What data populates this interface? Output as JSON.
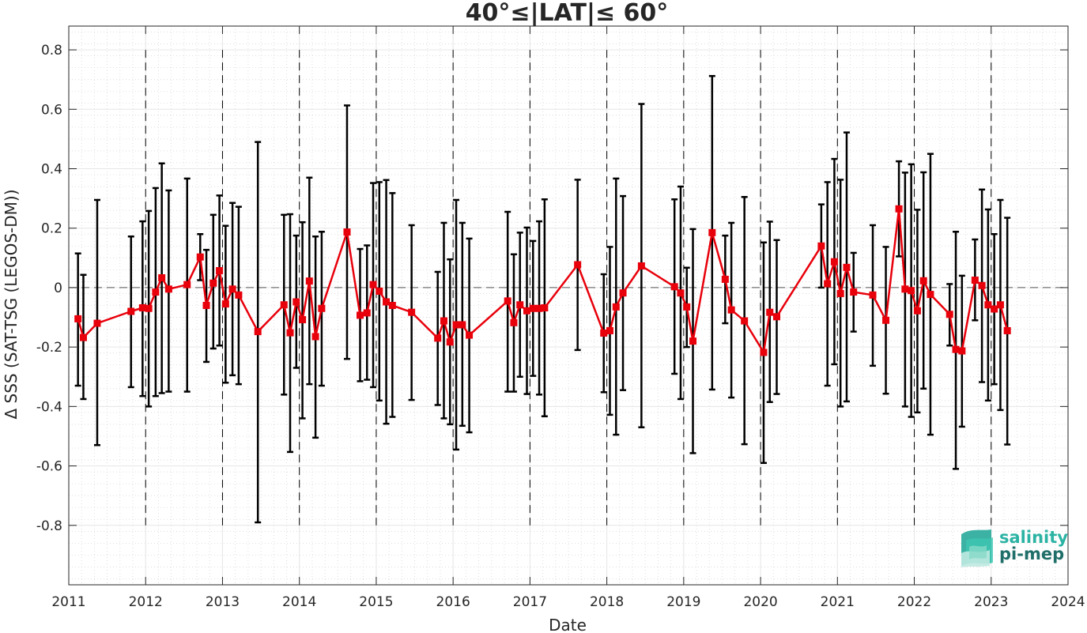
{
  "chart_data": {
    "type": "line",
    "title": "40°≤|LAT|≤ 60°",
    "xlabel": "Date",
    "ylabel": "Δ SSS (SAT-TSG (LEGOS-DM))",
    "xlim": [
      2011,
      2024
    ],
    "ylim": [
      -1.0,
      0.88
    ],
    "xticks": [
      2011,
      2012,
      2013,
      2014,
      2015,
      2016,
      2017,
      2018,
      2019,
      2020,
      2021,
      2022,
      2023,
      2024
    ],
    "xtick_labels": [
      "2011",
      "2012",
      "2013",
      "2014",
      "2015",
      "2016",
      "2017",
      "2018",
      "2019",
      "2020",
      "2021",
      "2022",
      "2023",
      "2024"
    ],
    "yticks": [
      -0.8,
      -0.6,
      -0.4,
      -0.2,
      0,
      0.2,
      0.4,
      0.6,
      0.8
    ],
    "ytick_labels": [
      "-0.8",
      "-0.6",
      "-0.4",
      "-0.2",
      "0",
      "0.2",
      "0.4",
      "0.6",
      "0.8"
    ],
    "grid": true,
    "reference_line": 0,
    "year_dividers": [
      2012,
      2013,
      2014,
      2015,
      2016,
      2017,
      2018,
      2019,
      2020,
      2021,
      2022,
      2023
    ],
    "colors": {
      "line": "#e8000b",
      "marker": "#e8000b",
      "errorbar": "#000000",
      "zero_line": "#555555",
      "divider": "#000000"
    },
    "series": [
      {
        "marker": "square",
        "points": [
          {
            "x": 2011.12,
            "y": -0.105,
            "lo": -0.33,
            "hi": 0.115
          },
          {
            "x": 2011.19,
            "y": -0.168,
            "lo": -0.375,
            "hi": 0.043
          },
          {
            "x": 2011.37,
            "y": -0.12,
            "lo": -0.53,
            "hi": 0.295
          },
          {
            "x": 2011.81,
            "y": -0.08,
            "lo": -0.335,
            "hi": 0.172
          },
          {
            "x": 2011.96,
            "y": -0.068,
            "lo": -0.365,
            "hi": 0.223
          },
          {
            "x": 2012.04,
            "y": -0.07,
            "lo": -0.4,
            "hi": 0.258
          },
          {
            "x": 2012.13,
            "y": -0.015,
            "lo": -0.365,
            "hi": 0.335
          },
          {
            "x": 2012.21,
            "y": 0.033,
            "lo": -0.355,
            "hi": 0.418
          },
          {
            "x": 2012.3,
            "y": -0.005,
            "lo": -0.35,
            "hi": 0.327
          },
          {
            "x": 2012.54,
            "y": 0.01,
            "lo": -0.35,
            "hi": 0.367
          },
          {
            "x": 2012.71,
            "y": 0.103,
            "lo": 0.025,
            "hi": 0.18
          },
          {
            "x": 2012.79,
            "y": -0.06,
            "lo": -0.25,
            "hi": 0.127
          },
          {
            "x": 2012.88,
            "y": 0.015,
            "lo": -0.205,
            "hi": 0.245
          },
          {
            "x": 2012.96,
            "y": 0.057,
            "lo": -0.195,
            "hi": 0.31
          },
          {
            "x": 2013.04,
            "y": -0.055,
            "lo": -0.32,
            "hi": 0.208
          },
          {
            "x": 2013.13,
            "y": -0.005,
            "lo": -0.295,
            "hi": 0.285
          },
          {
            "x": 2013.21,
            "y": -0.025,
            "lo": -0.325,
            "hi": 0.272
          },
          {
            "x": 2013.46,
            "y": -0.148,
            "lo": -0.79,
            "hi": 0.49
          },
          {
            "x": 2013.8,
            "y": -0.058,
            "lo": -0.36,
            "hi": 0.245
          },
          {
            "x": 2013.88,
            "y": -0.152,
            "lo": -0.553,
            "hi": 0.247
          },
          {
            "x": 2013.96,
            "y": -0.048,
            "lo": -0.27,
            "hi": 0.175
          },
          {
            "x": 2014.04,
            "y": -0.108,
            "lo": -0.44,
            "hi": 0.22
          },
          {
            "x": 2014.13,
            "y": 0.022,
            "lo": -0.325,
            "hi": 0.37
          },
          {
            "x": 2014.21,
            "y": -0.165,
            "lo": -0.505,
            "hi": 0.172
          },
          {
            "x": 2014.29,
            "y": -0.07,
            "lo": -0.33,
            "hi": 0.188
          },
          {
            "x": 2014.62,
            "y": 0.187,
            "lo": -0.24,
            "hi": 0.613
          },
          {
            "x": 2014.79,
            "y": -0.093,
            "lo": -0.315,
            "hi": 0.13
          },
          {
            "x": 2014.88,
            "y": -0.085,
            "lo": -0.31,
            "hi": 0.142
          },
          {
            "x": 2014.96,
            "y": 0.01,
            "lo": -0.335,
            "hi": 0.352
          },
          {
            "x": 2015.04,
            "y": -0.012,
            "lo": -0.38,
            "hi": 0.355
          },
          {
            "x": 2015.13,
            "y": -0.048,
            "lo": -0.458,
            "hi": 0.362
          },
          {
            "x": 2015.21,
            "y": -0.06,
            "lo": -0.435,
            "hi": 0.318
          },
          {
            "x": 2015.46,
            "y": -0.083,
            "lo": -0.378,
            "hi": 0.21
          },
          {
            "x": 2015.8,
            "y": -0.17,
            "lo": -0.395,
            "hi": 0.053
          },
          {
            "x": 2015.88,
            "y": -0.112,
            "lo": -0.44,
            "hi": 0.218
          },
          {
            "x": 2015.96,
            "y": -0.183,
            "lo": -0.46,
            "hi": 0.095
          },
          {
            "x": 2016.04,
            "y": -0.125,
            "lo": -0.545,
            "hi": 0.295
          },
          {
            "x": 2016.12,
            "y": -0.125,
            "lo": -0.465,
            "hi": 0.218
          },
          {
            "x": 2016.21,
            "y": -0.16,
            "lo": -0.487,
            "hi": 0.165
          },
          {
            "x": 2016.71,
            "y": -0.045,
            "lo": -0.35,
            "hi": 0.255
          },
          {
            "x": 2016.79,
            "y": -0.118,
            "lo": -0.35,
            "hi": 0.112
          },
          {
            "x": 2016.87,
            "y": -0.058,
            "lo": -0.3,
            "hi": 0.185
          },
          {
            "x": 2016.96,
            "y": -0.078,
            "lo": -0.358,
            "hi": 0.202
          },
          {
            "x": 2017.04,
            "y": -0.07,
            "lo": -0.297,
            "hi": 0.157
          },
          {
            "x": 2017.12,
            "y": -0.07,
            "lo": -0.36,
            "hi": 0.223
          },
          {
            "x": 2017.19,
            "y": -0.068,
            "lo": -0.433,
            "hi": 0.297
          },
          {
            "x": 2017.62,
            "y": 0.077,
            "lo": -0.21,
            "hi": 0.363
          },
          {
            "x": 2017.96,
            "y": -0.153,
            "lo": -0.352,
            "hi": 0.045
          },
          {
            "x": 2018.04,
            "y": -0.145,
            "lo": -0.428,
            "hi": 0.137
          },
          {
            "x": 2018.12,
            "y": -0.065,
            "lo": -0.495,
            "hi": 0.367
          },
          {
            "x": 2018.21,
            "y": -0.018,
            "lo": -0.345,
            "hi": 0.308
          },
          {
            "x": 2018.45,
            "y": 0.073,
            "lo": -0.47,
            "hi": 0.618
          },
          {
            "x": 2018.88,
            "y": 0.003,
            "lo": -0.29,
            "hi": 0.297
          },
          {
            "x": 2018.96,
            "y": -0.018,
            "lo": -0.375,
            "hi": 0.34
          },
          {
            "x": 2019.04,
            "y": -0.065,
            "lo": -0.2,
            "hi": 0.067
          },
          {
            "x": 2019.12,
            "y": -0.18,
            "lo": -0.557,
            "hi": 0.197
          },
          {
            "x": 2019.37,
            "y": 0.185,
            "lo": -0.343,
            "hi": 0.712
          },
          {
            "x": 2019.54,
            "y": 0.028,
            "lo": -0.12,
            "hi": 0.175
          },
          {
            "x": 2019.62,
            "y": -0.075,
            "lo": -0.37,
            "hi": 0.218
          },
          {
            "x": 2019.79,
            "y": -0.112,
            "lo": -0.527,
            "hi": 0.305
          },
          {
            "x": 2020.04,
            "y": -0.218,
            "lo": -0.59,
            "hi": 0.152
          },
          {
            "x": 2020.12,
            "y": -0.083,
            "lo": -0.385,
            "hi": 0.222
          },
          {
            "x": 2020.21,
            "y": -0.098,
            "lo": -0.358,
            "hi": 0.16
          },
          {
            "x": 2020.79,
            "y": 0.14,
            "lo": 0.0,
            "hi": 0.28
          },
          {
            "x": 2020.87,
            "y": 0.013,
            "lo": -0.33,
            "hi": 0.355
          },
          {
            "x": 2020.96,
            "y": 0.087,
            "lo": -0.258,
            "hi": 0.433
          },
          {
            "x": 2021.04,
            "y": -0.02,
            "lo": -0.4,
            "hi": 0.363
          },
          {
            "x": 2021.12,
            "y": 0.068,
            "lo": -0.383,
            "hi": 0.522
          },
          {
            "x": 2021.21,
            "y": -0.015,
            "lo": -0.148,
            "hi": 0.117
          },
          {
            "x": 2021.46,
            "y": -0.025,
            "lo": -0.263,
            "hi": 0.21
          },
          {
            "x": 2021.63,
            "y": -0.11,
            "lo": -0.357,
            "hi": 0.137
          },
          {
            "x": 2021.8,
            "y": 0.265,
            "lo": 0.105,
            "hi": 0.425
          },
          {
            "x": 2021.88,
            "y": -0.005,
            "lo": -0.4,
            "hi": 0.387
          },
          {
            "x": 2021.96,
            "y": -0.01,
            "lo": -0.435,
            "hi": 0.415
          },
          {
            "x": 2022.04,
            "y": -0.078,
            "lo": -0.42,
            "hi": 0.262
          },
          {
            "x": 2022.12,
            "y": 0.023,
            "lo": -0.34,
            "hi": 0.388
          },
          {
            "x": 2022.21,
            "y": -0.023,
            "lo": -0.495,
            "hi": 0.45
          },
          {
            "x": 2022.46,
            "y": -0.09,
            "lo": -0.195,
            "hi": 0.012
          },
          {
            "x": 2022.54,
            "y": -0.208,
            "lo": -0.61,
            "hi": 0.188
          },
          {
            "x": 2022.62,
            "y": -0.213,
            "lo": -0.468,
            "hi": 0.04
          },
          {
            "x": 2022.79,
            "y": 0.025,
            "lo": -0.11,
            "hi": 0.162
          },
          {
            "x": 2022.88,
            "y": 0.007,
            "lo": -0.318,
            "hi": 0.33
          },
          {
            "x": 2022.96,
            "y": -0.058,
            "lo": -0.38,
            "hi": 0.263
          },
          {
            "x": 2023.04,
            "y": -0.072,
            "lo": -0.325,
            "hi": 0.18
          },
          {
            "x": 2023.12,
            "y": -0.058,
            "lo": -0.412,
            "hi": 0.295
          },
          {
            "x": 2023.21,
            "y": -0.145,
            "lo": -0.528,
            "hi": 0.235
          }
        ]
      }
    ]
  },
  "logo": {
    "line1": "salinity",
    "line2": "pi-mep",
    "color1": "#2bb3a3",
    "color2": "#1f6e69"
  }
}
